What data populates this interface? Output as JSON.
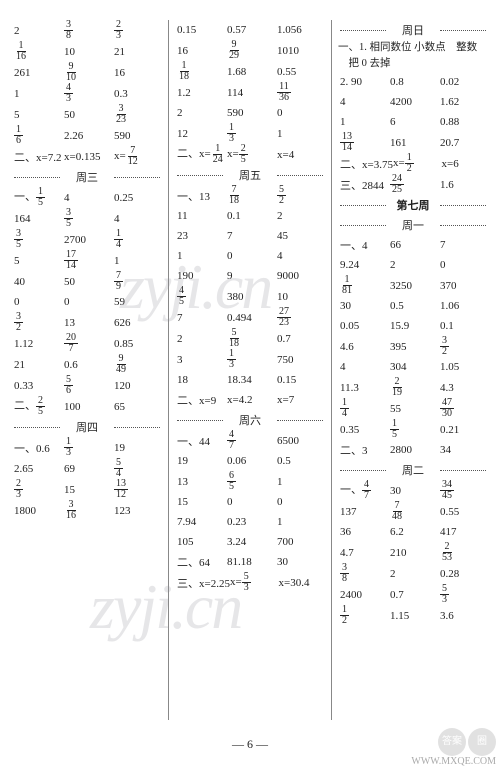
{
  "watermarks": {
    "text": "zyji.cn",
    "site": "WWW.MXQE.COM"
  },
  "footer": "— 6 —",
  "corner": {
    "t1": "答案",
    "t2": "圈"
  },
  "col1": {
    "rows": [
      [
        "2",
        "frac:3/8",
        "frac:2/3"
      ],
      [
        "frac:1/16",
        "10",
        "21"
      ],
      [
        "261",
        "frac:9/10",
        "16"
      ],
      [
        "1",
        "frac:4/3",
        "0.3"
      ],
      [
        "5",
        "50",
        "frac:3/23"
      ],
      [
        "frac:1/6",
        "2.26",
        "590"
      ]
    ],
    "eq1": [
      "二、x=7.2",
      "x=0.135",
      "x=frac:7/12"
    ],
    "h1": "周三",
    "rows2": [
      [
        "一、frac:1/5",
        "4",
        "0.25"
      ],
      [
        "164",
        "frac:3/5",
        "4"
      ],
      [
        "frac:3/5",
        "2700",
        "frac:1/4"
      ],
      [
        "5",
        "frac:17/14",
        "1"
      ],
      [
        "40",
        "50",
        "frac:7/9"
      ],
      [
        "0",
        "0",
        "59"
      ],
      [
        "frac:3/2",
        "13",
        "626"
      ],
      [
        "1.12",
        "frac:20/7",
        "0.85"
      ],
      [
        "21",
        "0.6",
        "frac:9/49"
      ],
      [
        "0.33",
        "frac:5/6",
        "120"
      ]
    ],
    "eq2": [
      "二、frac:2/5",
      "100",
      "65"
    ],
    "h2": "周四",
    "rows3": [
      [
        "一、0.6",
        "frac:1/3",
        "19"
      ],
      [
        "2.65",
        "69",
        "frac:5/4"
      ],
      [
        "frac:2/3",
        "15",
        "frac:13/12"
      ],
      [
        "1800",
        "frac:3/16",
        "123"
      ]
    ]
  },
  "col2": {
    "rows": [
      [
        "0.15",
        "0.57",
        "1.056"
      ],
      [
        "16",
        "frac:9/29",
        "1010"
      ],
      [
        "frac:1/18",
        "1.68",
        "0.55"
      ],
      [
        "1.2",
        "114",
        "frac:11/36"
      ],
      [
        "2",
        "590",
        "0"
      ],
      [
        "12",
        "frac:1/3",
        "1"
      ]
    ],
    "eq1": [
      "二、x=frac:1/24",
      "x=frac:2/5",
      "x=4"
    ],
    "h1": "周五",
    "rows2": [
      [
        "一、13",
        "frac:7/18",
        "frac:5/2"
      ],
      [
        "11",
        "0.1",
        "2"
      ],
      [
        "23",
        "7",
        "45"
      ],
      [
        "1",
        "0",
        "4"
      ],
      [
        "190",
        "9",
        "9000"
      ],
      [
        "frac:4/5",
        "380",
        "10"
      ],
      [
        "7",
        "0.494",
        "frac:27/23"
      ],
      [
        "2",
        "frac:5/18",
        "0.7"
      ],
      [
        "3",
        "frac:1/3",
        "750"
      ],
      [
        "18",
        "18.34",
        "0.15"
      ]
    ],
    "eq2": [
      "二、x=9",
      "x=4.2",
      "x=7"
    ],
    "h2": "周六",
    "rows3": [
      [
        "一、44",
        "frac:4/7",
        "6500"
      ],
      [
        "19",
        "0.06",
        "0.5"
      ],
      [
        "13",
        "frac:6/5",
        "1"
      ],
      [
        "15",
        "0",
        "0"
      ],
      [
        "7.94",
        "0.23",
        "1"
      ],
      [
        "105",
        "3.24",
        "700"
      ]
    ],
    "eq3": [
      "二、64",
      "81.18",
      "30"
    ],
    "eq4": [
      "三、x=2.25",
      "x=frac:5/3",
      "x=30.4"
    ]
  },
  "col3": {
    "h0": "周日",
    "intro": [
      "一、1. 相同数位 小数点　整数",
      "　把 0 去掉"
    ],
    "rows0": [
      [
        "2. 90",
        "0.8",
        "0.02"
      ],
      [
        "   4",
        "4200",
        "1.62"
      ],
      [
        "   1",
        "6",
        "0.88"
      ],
      [
        "   frac:13/14",
        "161",
        "20.7"
      ]
    ],
    "eq0": [
      "二、x=3.75",
      "x=frac:1/2",
      "x=6"
    ],
    "eq0b": [
      "三、2844",
      "frac:24/25",
      "1.6"
    ],
    "bigh": "第七周",
    "h1": "周一",
    "rows1": [
      [
        "一、4",
        "66",
        "7"
      ],
      [
        "9.24",
        "2",
        "0"
      ],
      [
        "frac:1/81",
        "3250",
        "370"
      ],
      [
        "30",
        "0.5",
        "1.06"
      ],
      [
        "0.05",
        "15.9",
        "0.1"
      ],
      [
        "4.6",
        "395",
        "frac:3/2"
      ],
      [
        "4",
        "304",
        "1.05"
      ],
      [
        "11.3",
        "frac:2/19",
        "4.3"
      ],
      [
        "frac:1/4",
        "55",
        "frac:47/30"
      ],
      [
        "0.35",
        "frac:1/5",
        "0.21"
      ]
    ],
    "eq1": [
      "二、3",
      "2800",
      "34"
    ],
    "h2": "周二",
    "rows2": [
      [
        "一、frac:4/7",
        "30",
        "frac:34/45"
      ],
      [
        "137",
        "frac:7/48",
        "0.55"
      ],
      [
        "36",
        "6.2",
        "417"
      ],
      [
        "4.7",
        "210",
        "frac:2/53"
      ],
      [
        "frac:3/8",
        "2",
        "0.28"
      ],
      [
        "2400",
        "0.7",
        "frac:5/3"
      ],
      [
        "frac:1/2",
        "1.15",
        "3.6"
      ]
    ]
  }
}
